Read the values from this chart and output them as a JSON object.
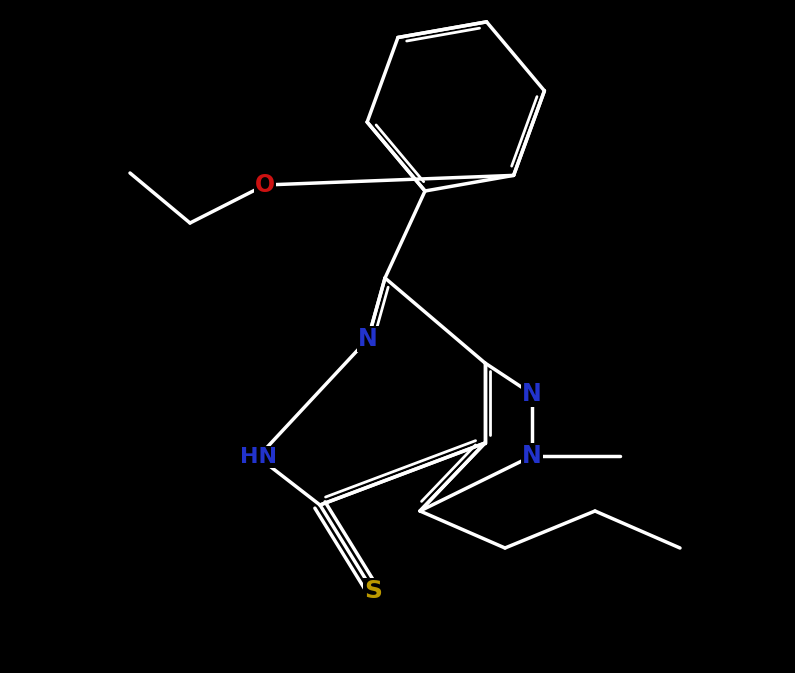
{
  "bg": "#000000",
  "wc": "#ffffff",
  "nc": "#2233CC",
  "oc": "#CC1111",
  "sc": "#BB9900",
  "lw": 2.5,
  "lw2": 2.0,
  "fs": 15,
  "fig_w": 7.95,
  "fig_h": 6.73,
  "dpi": 100,
  "xlim": [
    0,
    7.95
  ],
  "ylim": [
    0,
    6.73
  ]
}
